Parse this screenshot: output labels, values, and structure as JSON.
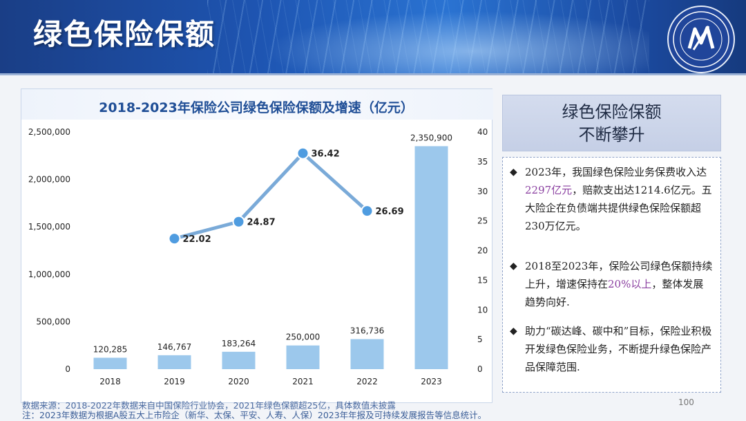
{
  "page": {
    "title": "绿色保险保额",
    "page_number": "100"
  },
  "colors": {
    "bar": "#9cc8ec",
    "line": "#7aaad8",
    "marker": "#4f9ce0",
    "title_text": "#1f4e96",
    "highlight": "#8a3fa0"
  },
  "chart_data": {
    "type": "bar",
    "title": "2018-2023年保险公司绿色保险保额及增速（亿元）",
    "categories": [
      "2018",
      "2019",
      "2020",
      "2021",
      "2022",
      "2023"
    ],
    "series": [
      {
        "axis": "left",
        "type": "bar",
        "values": [
          120285,
          146767,
          183264,
          250000,
          316736,
          2350900
        ]
      },
      {
        "axis": "right",
        "type": "line",
        "x": [
          "2019",
          "2020",
          "2021",
          "2022"
        ],
        "values": [
          22.02,
          24.87,
          36.42,
          26.69
        ]
      }
    ],
    "bar_labels": [
      "120,285",
      "146,767",
      "183,264",
      "250,000",
      "316,736",
      "2,350,900"
    ],
    "line_labels": [
      "22.02",
      "24.87",
      "36.42",
      "26.69"
    ],
    "y_left": {
      "ylim": [
        0,
        2500000
      ],
      "ticks": [
        "0",
        "500,000",
        "1,000,000",
        "1,500,000",
        "2,000,000",
        "2,500,000"
      ]
    },
    "y_right": {
      "ylim": [
        0,
        40
      ],
      "ticks": [
        "0",
        "5",
        "10",
        "15",
        "20",
        "25",
        "30",
        "35",
        "40"
      ]
    },
    "grid": false,
    "legend": "none"
  },
  "side": {
    "header_line1": "绿色保险保额",
    "header_line2": "不断攀升",
    "bullet_symbol": "◆",
    "bullets": [
      {
        "pre": "2023年，我国绿色保险业务保费收入达",
        "hl": "2297亿元",
        "post": "，赔款支出达1214.6亿元。五大险企在负债端共提供绿色保险保额超230万亿元。"
      },
      {
        "pre": "2018至2023年，保险公司绿色保额持续上升，增速保持在",
        "hl": "20%以上",
        "post": "，整体发展趋势向好."
      },
      {
        "pre": "助力“碳达峰、碳中和”目标，保险业积极开发绿色保险业务，不断提升绿色保险产品保障范围.",
        "hl": "",
        "post": ""
      }
    ]
  },
  "footnotes": {
    "line1": "数据来源：2018-2022年数据来自中国保险行业协会，2021年绿色保额超25亿，具体数值未披露",
    "line2": "注：2023年数据为根据A股五大上市险企（新华、太保、平安、人寿、人保）2023年年报及可持续发展报告等信息统计。"
  }
}
